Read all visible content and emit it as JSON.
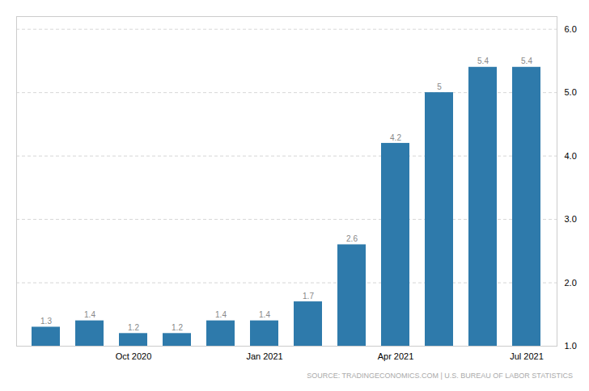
{
  "chart_data": {
    "type": "bar",
    "categories": [
      null,
      null,
      "Oct 2020",
      null,
      null,
      "Jan 2021",
      null,
      null,
      "Apr 2021",
      null,
      null,
      "Jul 2021"
    ],
    "values": [
      1.3,
      1.4,
      1.2,
      1.2,
      1.4,
      1.4,
      1.7,
      2.6,
      4.2,
      5.0,
      5.4,
      5.4
    ],
    "color": "#2e7aab",
    "ylim": [
      1.0,
      6.2
    ],
    "yticks": [
      1,
      2,
      3,
      4,
      5,
      6
    ],
    "grid": true,
    "data_labels": true,
    "annotations": [
      "SOURCE: TRADINGECONOMICS.COM | U.S. BUREAU OF LABOR STATISTICS"
    ]
  }
}
